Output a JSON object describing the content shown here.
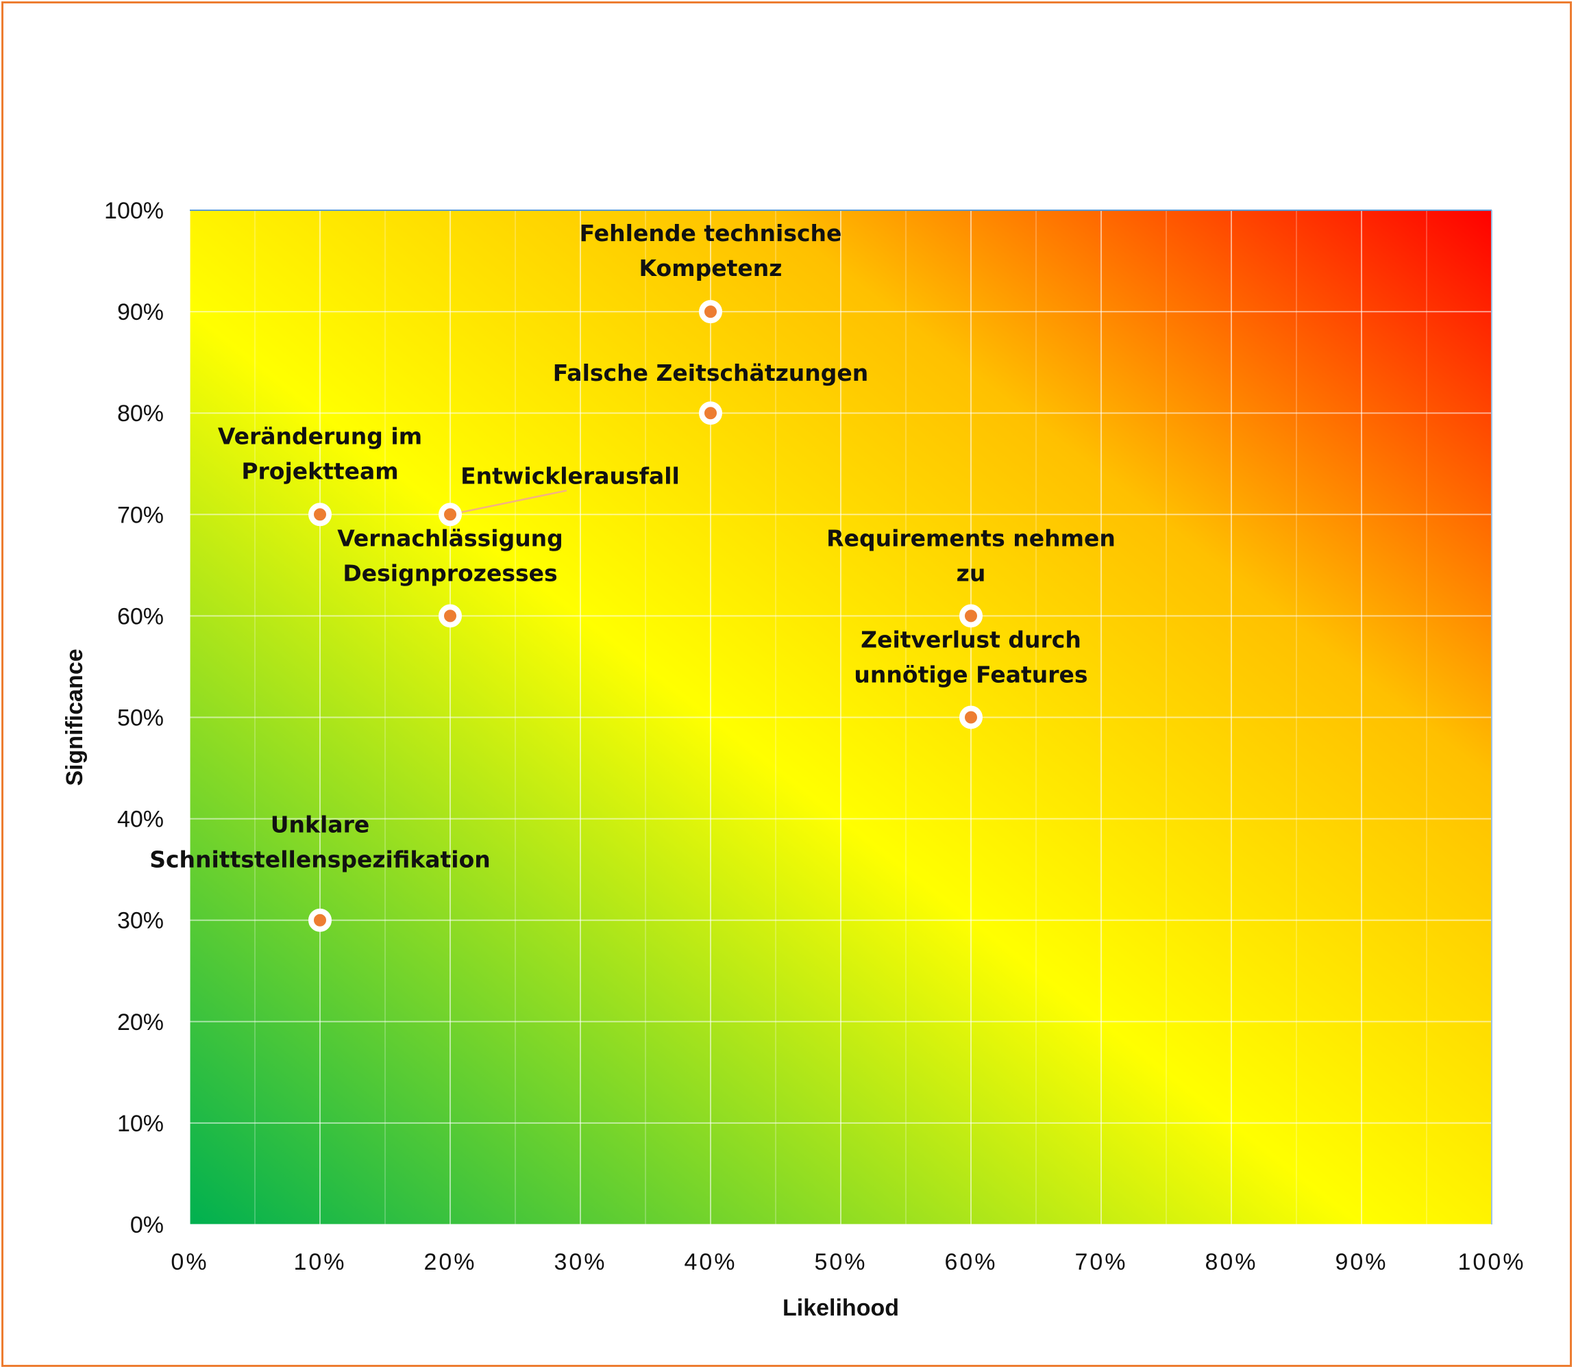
{
  "chart_data": {
    "type": "scatter",
    "title": "",
    "xlabel": "Likelihood",
    "ylabel": "Significance",
    "xlim": [
      0,
      100
    ],
    "ylim": [
      0,
      100
    ],
    "x_ticks": [
      "0%",
      "10%",
      "20%",
      "30%",
      "40%",
      "50%",
      "60%",
      "70%",
      "80%",
      "90%",
      "100%"
    ],
    "y_ticks": [
      "0%",
      "10%",
      "20%",
      "30%",
      "40%",
      "50%",
      "60%",
      "70%",
      "80%",
      "90%",
      "100%"
    ],
    "grid": true,
    "background": "green-yellow-red gradient from bottom-left to top-right",
    "colors": {
      "green": "#00b050",
      "yellow": "#ffff00",
      "orange": "#ffc000",
      "red": "#ff0000",
      "marker_fill": "#ed7d31",
      "marker_edge": "#ffffff",
      "frame": "#ed7d31"
    },
    "points": [
      {
        "x": 40,
        "y": 90,
        "label_lines": [
          "Fehlende technische",
          "Kompetenz"
        ]
      },
      {
        "x": 40,
        "y": 80,
        "label_lines": [
          "Falsche Zeitschätzungen"
        ]
      },
      {
        "x": 10,
        "y": 70,
        "label_lines": [
          "Veränderung im",
          "Projektteam"
        ]
      },
      {
        "x": 20,
        "y": 70,
        "label_lines": [
          "Entwicklerausfall"
        ]
      },
      {
        "x": 20,
        "y": 60,
        "label_lines": [
          "Vernachlässigung",
          "Designprozesses"
        ]
      },
      {
        "x": 60,
        "y": 60,
        "label_lines": [
          "Requirements nehmen",
          "zu"
        ]
      },
      {
        "x": 60,
        "y": 50,
        "label_lines": [
          "Zeitverlust durch",
          "unnötige Features"
        ]
      },
      {
        "x": 10,
        "y": 30,
        "label_lines": [
          "Unklare",
          "Schnittstellenspezifikation"
        ]
      }
    ]
  }
}
